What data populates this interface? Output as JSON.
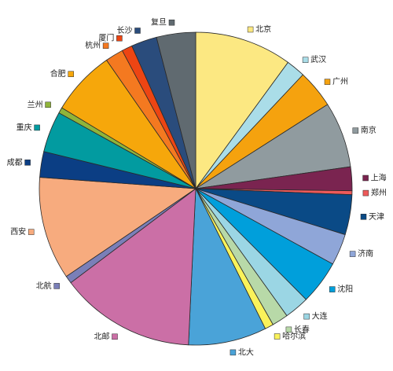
{
  "chart_data": {
    "type": "pie",
    "title": "",
    "start_angle_deg": 0,
    "direction": "clockwise",
    "slices": [
      {
        "label": "北京",
        "value": 10.2,
        "color": "#FCE882"
      },
      {
        "label": "武汉",
        "value": 2.0,
        "color": "#AADDE8"
      },
      {
        "label": "广州",
        "value": 4.0,
        "color": "#F5A20E"
      },
      {
        "label": "南京",
        "value": 6.9,
        "color": "#909B9F"
      },
      {
        "label": "上海",
        "value": 2.5,
        "color": "#7A2450"
      },
      {
        "label": "郑州",
        "value": 0.4,
        "color": "#EE5A5A"
      },
      {
        "label": "天津",
        "value": 4.2,
        "color": "#0A4A86"
      },
      {
        "label": "济南",
        "value": 3.3,
        "color": "#8FA6D8"
      },
      {
        "label": "沈阳",
        "value": 4.6,
        "color": "#009FDB"
      },
      {
        "label": "大连",
        "value": 2.6,
        "color": "#9BD6E4"
      },
      {
        "label": "长春",
        "value": 1.7,
        "color": "#B8D9A8"
      },
      {
        "label": "哈尔滨",
        "value": 0.9,
        "color": "#FAF25A"
      },
      {
        "label": "北大",
        "value": 8.2,
        "color": "#4AA3D8"
      },
      {
        "label": "北邮",
        "value": 14.2,
        "color": "#CB6FA6"
      },
      {
        "label": "北航",
        "value": 0.8,
        "color": "#7A7FB8"
      },
      {
        "label": "西安",
        "value": 10.8,
        "color": "#F7AB7E"
      },
      {
        "label": "成都",
        "value": 2.7,
        "color": "#0B3E84"
      },
      {
        "label": "重庆",
        "value": 4.3,
        "color": "#029BA0"
      },
      {
        "label": "兰州",
        "value": 0.6,
        "color": "#8FB43A"
      },
      {
        "label": "合肥",
        "value": 6.8,
        "color": "#F6A70B"
      },
      {
        "label": "杭州",
        "value": 1.9,
        "color": "#F47920"
      },
      {
        "label": "厦门",
        "value": 1.1,
        "color": "#ED4513"
      },
      {
        "label": "长沙",
        "value": 2.7,
        "color": "#2A4C7C"
      },
      {
        "label": "复旦",
        "value": 4.1,
        "color": "#606A70"
      }
    ]
  }
}
